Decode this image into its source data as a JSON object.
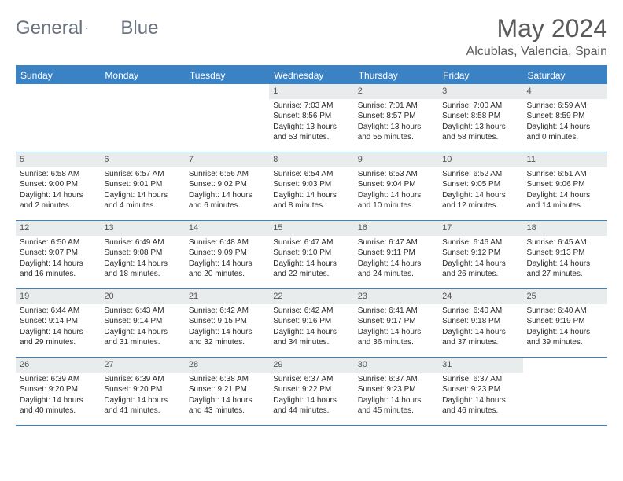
{
  "brand": {
    "part1": "General",
    "part2": "Blue"
  },
  "title": "May 2024",
  "location": "Alcublas, Valencia, Spain",
  "colors": {
    "header_bg": "#3b82c4",
    "header_text": "#ffffff",
    "daynum_bg": "#e8eced",
    "text": "#2b2b2b",
    "title_color": "#5a5a5a"
  },
  "weekdays": [
    "Sunday",
    "Monday",
    "Tuesday",
    "Wednesday",
    "Thursday",
    "Friday",
    "Saturday"
  ],
  "weeks": [
    [
      {
        "n": "",
        "sr": "",
        "ss": "",
        "dl": ""
      },
      {
        "n": "",
        "sr": "",
        "ss": "",
        "dl": ""
      },
      {
        "n": "",
        "sr": "",
        "ss": "",
        "dl": ""
      },
      {
        "n": "1",
        "sr": "Sunrise: 7:03 AM",
        "ss": "Sunset: 8:56 PM",
        "dl": "Daylight: 13 hours and 53 minutes."
      },
      {
        "n": "2",
        "sr": "Sunrise: 7:01 AM",
        "ss": "Sunset: 8:57 PM",
        "dl": "Daylight: 13 hours and 55 minutes."
      },
      {
        "n": "3",
        "sr": "Sunrise: 7:00 AM",
        "ss": "Sunset: 8:58 PM",
        "dl": "Daylight: 13 hours and 58 minutes."
      },
      {
        "n": "4",
        "sr": "Sunrise: 6:59 AM",
        "ss": "Sunset: 8:59 PM",
        "dl": "Daylight: 14 hours and 0 minutes."
      }
    ],
    [
      {
        "n": "5",
        "sr": "Sunrise: 6:58 AM",
        "ss": "Sunset: 9:00 PM",
        "dl": "Daylight: 14 hours and 2 minutes."
      },
      {
        "n": "6",
        "sr": "Sunrise: 6:57 AM",
        "ss": "Sunset: 9:01 PM",
        "dl": "Daylight: 14 hours and 4 minutes."
      },
      {
        "n": "7",
        "sr": "Sunrise: 6:56 AM",
        "ss": "Sunset: 9:02 PM",
        "dl": "Daylight: 14 hours and 6 minutes."
      },
      {
        "n": "8",
        "sr": "Sunrise: 6:54 AM",
        "ss": "Sunset: 9:03 PM",
        "dl": "Daylight: 14 hours and 8 minutes."
      },
      {
        "n": "9",
        "sr": "Sunrise: 6:53 AM",
        "ss": "Sunset: 9:04 PM",
        "dl": "Daylight: 14 hours and 10 minutes."
      },
      {
        "n": "10",
        "sr": "Sunrise: 6:52 AM",
        "ss": "Sunset: 9:05 PM",
        "dl": "Daylight: 14 hours and 12 minutes."
      },
      {
        "n": "11",
        "sr": "Sunrise: 6:51 AM",
        "ss": "Sunset: 9:06 PM",
        "dl": "Daylight: 14 hours and 14 minutes."
      }
    ],
    [
      {
        "n": "12",
        "sr": "Sunrise: 6:50 AM",
        "ss": "Sunset: 9:07 PM",
        "dl": "Daylight: 14 hours and 16 minutes."
      },
      {
        "n": "13",
        "sr": "Sunrise: 6:49 AM",
        "ss": "Sunset: 9:08 PM",
        "dl": "Daylight: 14 hours and 18 minutes."
      },
      {
        "n": "14",
        "sr": "Sunrise: 6:48 AM",
        "ss": "Sunset: 9:09 PM",
        "dl": "Daylight: 14 hours and 20 minutes."
      },
      {
        "n": "15",
        "sr": "Sunrise: 6:47 AM",
        "ss": "Sunset: 9:10 PM",
        "dl": "Daylight: 14 hours and 22 minutes."
      },
      {
        "n": "16",
        "sr": "Sunrise: 6:47 AM",
        "ss": "Sunset: 9:11 PM",
        "dl": "Daylight: 14 hours and 24 minutes."
      },
      {
        "n": "17",
        "sr": "Sunrise: 6:46 AM",
        "ss": "Sunset: 9:12 PM",
        "dl": "Daylight: 14 hours and 26 minutes."
      },
      {
        "n": "18",
        "sr": "Sunrise: 6:45 AM",
        "ss": "Sunset: 9:13 PM",
        "dl": "Daylight: 14 hours and 27 minutes."
      }
    ],
    [
      {
        "n": "19",
        "sr": "Sunrise: 6:44 AM",
        "ss": "Sunset: 9:14 PM",
        "dl": "Daylight: 14 hours and 29 minutes."
      },
      {
        "n": "20",
        "sr": "Sunrise: 6:43 AM",
        "ss": "Sunset: 9:14 PM",
        "dl": "Daylight: 14 hours and 31 minutes."
      },
      {
        "n": "21",
        "sr": "Sunrise: 6:42 AM",
        "ss": "Sunset: 9:15 PM",
        "dl": "Daylight: 14 hours and 32 minutes."
      },
      {
        "n": "22",
        "sr": "Sunrise: 6:42 AM",
        "ss": "Sunset: 9:16 PM",
        "dl": "Daylight: 14 hours and 34 minutes."
      },
      {
        "n": "23",
        "sr": "Sunrise: 6:41 AM",
        "ss": "Sunset: 9:17 PM",
        "dl": "Daylight: 14 hours and 36 minutes."
      },
      {
        "n": "24",
        "sr": "Sunrise: 6:40 AM",
        "ss": "Sunset: 9:18 PM",
        "dl": "Daylight: 14 hours and 37 minutes."
      },
      {
        "n": "25",
        "sr": "Sunrise: 6:40 AM",
        "ss": "Sunset: 9:19 PM",
        "dl": "Daylight: 14 hours and 39 minutes."
      }
    ],
    [
      {
        "n": "26",
        "sr": "Sunrise: 6:39 AM",
        "ss": "Sunset: 9:20 PM",
        "dl": "Daylight: 14 hours and 40 minutes."
      },
      {
        "n": "27",
        "sr": "Sunrise: 6:39 AM",
        "ss": "Sunset: 9:20 PM",
        "dl": "Daylight: 14 hours and 41 minutes."
      },
      {
        "n": "28",
        "sr": "Sunrise: 6:38 AM",
        "ss": "Sunset: 9:21 PM",
        "dl": "Daylight: 14 hours and 43 minutes."
      },
      {
        "n": "29",
        "sr": "Sunrise: 6:37 AM",
        "ss": "Sunset: 9:22 PM",
        "dl": "Daylight: 14 hours and 44 minutes."
      },
      {
        "n": "30",
        "sr": "Sunrise: 6:37 AM",
        "ss": "Sunset: 9:23 PM",
        "dl": "Daylight: 14 hours and 45 minutes."
      },
      {
        "n": "31",
        "sr": "Sunrise: 6:37 AM",
        "ss": "Sunset: 9:23 PM",
        "dl": "Daylight: 14 hours and 46 minutes."
      },
      {
        "n": "",
        "sr": "",
        "ss": "",
        "dl": ""
      }
    ]
  ]
}
